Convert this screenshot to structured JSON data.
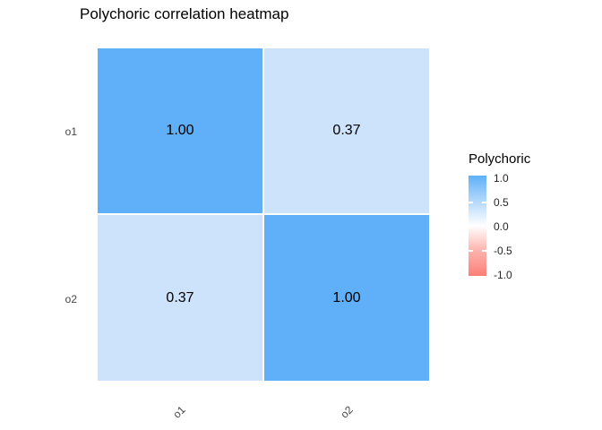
{
  "chart_data": {
    "type": "heatmap",
    "title": "Polychoric correlation heatmap",
    "x_categories": [
      "o1",
      "o2"
    ],
    "y_categories": [
      "o1",
      "o2"
    ],
    "series": [
      {
        "name": "o1",
        "values": [
          1.0,
          0.37
        ]
      },
      {
        "name": "o2",
        "values": [
          0.37,
          1.0
        ]
      }
    ],
    "value_range": [
      -1.0,
      1.0
    ],
    "grid": false,
    "legend_position": "right",
    "colors": {
      "high": "#5FB0F8",
      "mid": "#FFFFFF",
      "low": "#FB7E78",
      "value_037": "#CDE2FB"
    }
  },
  "axes": {
    "y_labels": [
      "o1",
      "o2"
    ],
    "x_labels": [
      "o1",
      "o2"
    ]
  },
  "cells": {
    "r0c0": {
      "label": "1.00",
      "value": 1.0,
      "color": "#5FB0F8"
    },
    "r0c1": {
      "label": "0.37",
      "value": 0.37,
      "color": "#CDE2FB"
    },
    "r1c0": {
      "label": "0.37",
      "value": 0.37,
      "color": "#CDE2FB"
    },
    "r1c1": {
      "label": "1.00",
      "value": 1.0,
      "color": "#5FB0F8"
    }
  },
  "legend": {
    "title": "Polychoric",
    "ticks": [
      "1.0",
      "0.5",
      "0.0",
      "-0.5",
      "-1.0"
    ],
    "gradient_css": "linear-gradient(180deg, #5FB0F8 0%, #B3D7FB 25%, #FFFFFF 50%, #FDB3AD 75%, #FB7E78 100%)"
  }
}
